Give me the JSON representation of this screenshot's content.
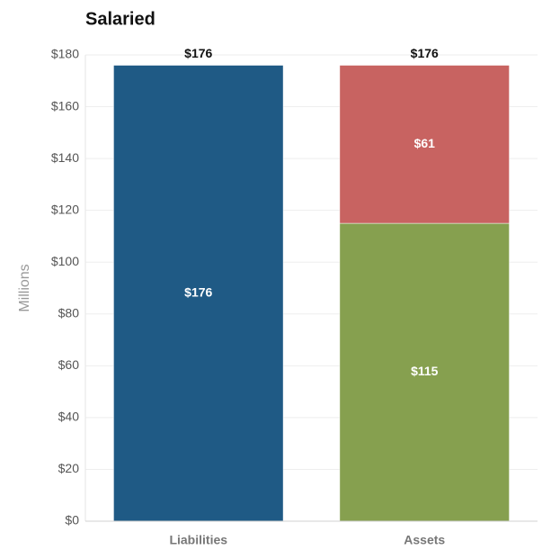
{
  "chart_data": {
    "type": "stacked_bar",
    "title": "Salaried",
    "y_label": "Millions",
    "categories": [
      "Liabilities",
      "Assets"
    ],
    "series": [
      {
        "color": "#1f5a85",
        "values": [
          176,
          null
        ],
        "value_labels": [
          "$176",
          null
        ]
      },
      {
        "color": "#86a04f",
        "values": [
          null,
          115
        ],
        "value_labels": [
          null,
          "$115"
        ]
      },
      {
        "color": "#c86361",
        "values": [
          null,
          61
        ],
        "value_labels": [
          null,
          "$61"
        ]
      }
    ],
    "totals": [
      176,
      176
    ],
    "total_labels": [
      "$176",
      "$176"
    ],
    "ylim": [
      0,
      180
    ],
    "yticks": [
      {
        "value": 0,
        "label": "$0"
      },
      {
        "value": 20,
        "label": "$20"
      },
      {
        "value": 40,
        "label": "$40"
      },
      {
        "value": 60,
        "label": "$60"
      },
      {
        "value": 80,
        "label": "$80"
      },
      {
        "value": 100,
        "label": "$100"
      },
      {
        "value": 120,
        "label": "$120"
      },
      {
        "value": 140,
        "label": "$140"
      },
      {
        "value": 160,
        "label": "$160"
      },
      {
        "value": 180,
        "label": "$180"
      }
    ],
    "grid": true
  }
}
